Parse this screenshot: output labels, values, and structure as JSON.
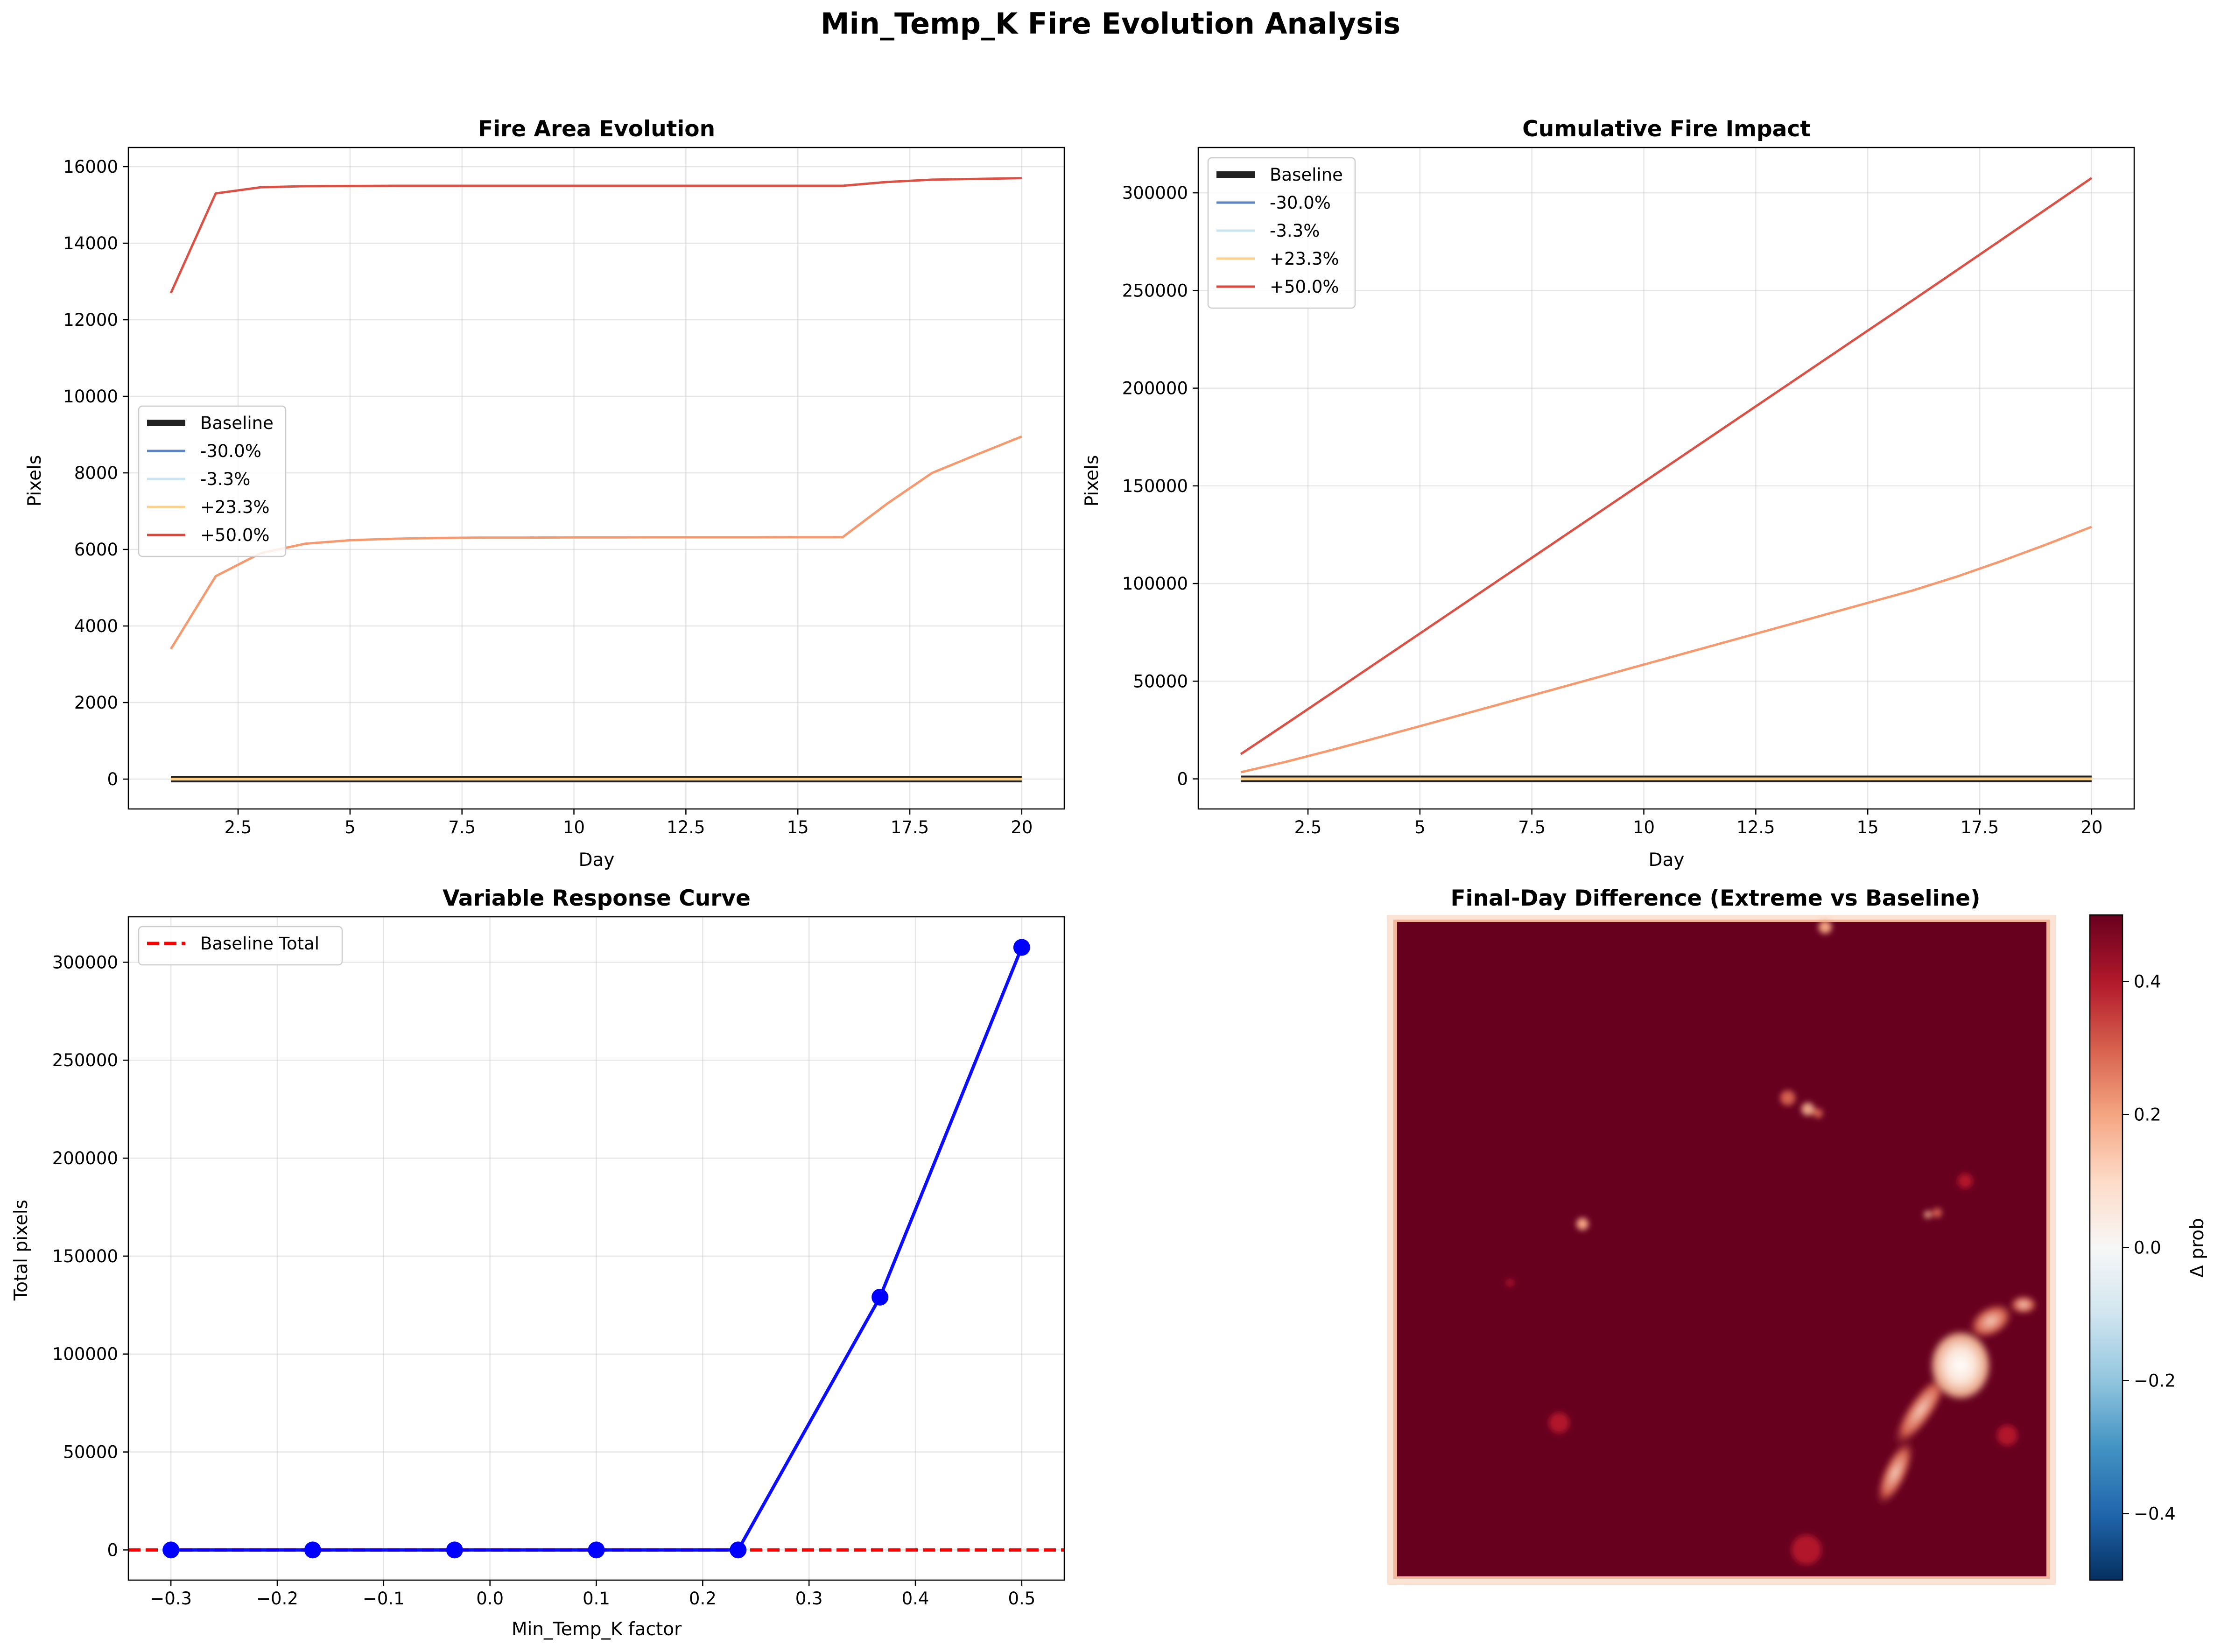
{
  "figure": {
    "title": "Min_Temp_K Fire Evolution Analysis"
  },
  "colors": {
    "baseline": "#222222",
    "m30": "#5b84c4",
    "m3_3": "#c9e4f2",
    "p23_3": "#fdd08a",
    "p50": "#d9483b",
    "p36_7": "#f59467",
    "response": "#0000ff",
    "baseline_total": "#ff0000",
    "heat_high": "#67001f",
    "heat_low": "#053061"
  },
  "chart_data": [
    {
      "id": "area",
      "type": "line",
      "title": "Fire Area Evolution",
      "xlabel": "Day",
      "ylabel": "Pixels",
      "xlim": [
        0.05,
        20.95
      ],
      "ylim": [
        -780,
        16500
      ],
      "xticks": [
        2.5,
        5.0,
        7.5,
        10.0,
        12.5,
        15.0,
        17.5,
        20.0
      ],
      "yticks": [
        0,
        2000,
        4000,
        6000,
        8000,
        10000,
        12000,
        14000,
        16000
      ],
      "grid": true,
      "legend": {
        "position": "center-left",
        "entries": [
          {
            "label": "Baseline",
            "color": "baseline",
            "width": "thick"
          },
          {
            "label": "-30.0%",
            "color": "m30",
            "width": "thin"
          },
          {
            "label": "-3.3%",
            "color": "m3_3",
            "width": "thin"
          },
          {
            "label": "+23.3%",
            "color": "p23_3",
            "width": "thin"
          },
          {
            "label": "+50.0%",
            "color": "p50",
            "width": "thin"
          }
        ]
      },
      "x": [
        1,
        2,
        3,
        4,
        5,
        6,
        7,
        8,
        9,
        10,
        11,
        12,
        13,
        14,
        15,
        16,
        17,
        18,
        19,
        20
      ],
      "series": [
        {
          "name": "Baseline",
          "color": "baseline",
          "width": "thick",
          "values": [
            0,
            0,
            0,
            0,
            0,
            0,
            0,
            0,
            0,
            0,
            0,
            0,
            0,
            0,
            0,
            0,
            0,
            0,
            0,
            0
          ]
        },
        {
          "name": "-30.0%",
          "color": "m30",
          "width": "thin",
          "values": [
            0,
            0,
            0,
            0,
            0,
            0,
            0,
            0,
            0,
            0,
            0,
            0,
            0,
            0,
            0,
            0,
            0,
            0,
            0,
            0
          ]
        },
        {
          "name": "-3.3%",
          "color": "m3_3",
          "width": "thin",
          "values": [
            0,
            0,
            0,
            0,
            0,
            0,
            0,
            0,
            0,
            0,
            0,
            0,
            0,
            0,
            0,
            0,
            0,
            0,
            0,
            0
          ]
        },
        {
          "name": "+23.3%",
          "color": "p23_3",
          "width": "thin",
          "values": [
            0,
            0,
            0,
            0,
            0,
            0,
            0,
            0,
            0,
            0,
            0,
            0,
            0,
            0,
            0,
            0,
            0,
            0,
            0,
            0
          ]
        },
        {
          "color": "p36_7",
          "width": "thin",
          "values": [
            3400,
            5300,
            5900,
            6150,
            6240,
            6280,
            6300,
            6310,
            6310,
            6315,
            6315,
            6318,
            6318,
            6318,
            6320,
            6320,
            7200,
            8000,
            8480,
            8950
          ]
        },
        {
          "name": "+50.0%",
          "color": "p50",
          "width": "thin",
          "values": [
            12700,
            15300,
            15460,
            15490,
            15495,
            15500,
            15500,
            15500,
            15500,
            15500,
            15500,
            15500,
            15500,
            15500,
            15500,
            15500,
            15600,
            15660,
            15680,
            15700
          ]
        }
      ]
    },
    {
      "id": "cumulative",
      "type": "line",
      "title": "Cumulative Fire Impact",
      "xlabel": "Day",
      "ylabel": "Pixels",
      "xlim": [
        0.05,
        20.95
      ],
      "ylim": [
        -15400,
        323200
      ],
      "xticks": [
        2.5,
        5.0,
        7.5,
        10.0,
        12.5,
        15.0,
        17.5,
        20.0
      ],
      "yticks": [
        0,
        50000,
        100000,
        150000,
        200000,
        250000,
        300000
      ],
      "grid": true,
      "legend": {
        "position": "upper-left",
        "entries": [
          {
            "label": "Baseline",
            "color": "baseline",
            "width": "thick"
          },
          {
            "label": "-30.0%",
            "color": "m30",
            "width": "thin"
          },
          {
            "label": "-3.3%",
            "color": "m3_3",
            "width": "thin"
          },
          {
            "label": "+23.3%",
            "color": "p23_3",
            "width": "thin"
          },
          {
            "label": "+50.0%",
            "color": "p50",
            "width": "thin"
          }
        ]
      },
      "x": [
        1,
        2,
        3,
        4,
        5,
        6,
        7,
        8,
        9,
        10,
        11,
        12,
        13,
        14,
        15,
        16,
        17,
        18,
        19,
        20
      ],
      "series": [
        {
          "name": "Baseline",
          "color": "baseline",
          "width": "thick",
          "values": [
            0,
            0,
            0,
            0,
            0,
            0,
            0,
            0,
            0,
            0,
            0,
            0,
            0,
            0,
            0,
            0,
            0,
            0,
            0,
            0
          ]
        },
        {
          "name": "-30.0%",
          "color": "m30",
          "width": "thin",
          "values": [
            0,
            0,
            0,
            0,
            0,
            0,
            0,
            0,
            0,
            0,
            0,
            0,
            0,
            0,
            0,
            0,
            0,
            0,
            0,
            0
          ]
        },
        {
          "name": "-3.3%",
          "color": "m3_3",
          "width": "thin",
          "values": [
            0,
            0,
            0,
            0,
            0,
            0,
            0,
            0,
            0,
            0,
            0,
            0,
            0,
            0,
            0,
            0,
            0,
            0,
            0,
            0
          ]
        },
        {
          "name": "+23.3%",
          "color": "p23_3",
          "width": "thin",
          "values": [
            0,
            0,
            0,
            0,
            0,
            0,
            0,
            0,
            0,
            0,
            0,
            0,
            0,
            0,
            0,
            0,
            0,
            0,
            0,
            0
          ]
        },
        {
          "color": "p36_7",
          "width": "thin",
          "values": [
            3400,
            8700,
            14600,
            20750,
            26990,
            33270,
            39570,
            45880,
            52190,
            58505,
            64820,
            71138,
            77456,
            83774,
            90094,
            96414,
            103614,
            111614,
            120094,
            129044
          ]
        },
        {
          "name": "+50.0%",
          "color": "p50",
          "width": "thin",
          "values": [
            12700,
            28000,
            43460,
            58950,
            74445,
            89945,
            105445,
            120945,
            136445,
            151945,
            167445,
            182945,
            198445,
            213945,
            229445,
            244945,
            260545,
            276205,
            291885,
            307585
          ]
        }
      ]
    },
    {
      "id": "response",
      "type": "line",
      "title": "Variable Response Curve",
      "xlabel": "Min_Temp_K factor",
      "ylabel": "Total pixels",
      "xlim": [
        -0.34,
        0.54
      ],
      "ylim": [
        -15400,
        323200
      ],
      "xticks": [
        -0.3,
        -0.2,
        -0.1,
        0.0,
        0.1,
        0.2,
        0.3,
        0.4,
        0.5
      ],
      "xtick_labels": [
        "−0.3",
        "−0.2",
        "−0.1",
        "0.0",
        "0.1",
        "0.2",
        "0.3",
        "0.4",
        "0.5"
      ],
      "yticks": [
        0,
        50000,
        100000,
        150000,
        200000,
        250000,
        300000
      ],
      "grid": true,
      "legend": {
        "position": "upper-left",
        "entries": [
          {
            "label": "Baseline Total",
            "color": "baseline_total",
            "style": "dashed"
          }
        ]
      },
      "x": [
        -0.3,
        -0.1667,
        -0.0333,
        0.1,
        0.2333,
        0.3667,
        0.5
      ],
      "series": [
        {
          "color": "response",
          "marker": "circle",
          "values": [
            0,
            0,
            0,
            0,
            0,
            129044,
            307585
          ]
        }
      ],
      "hlines": [
        {
          "name": "Baseline Total",
          "value": 0,
          "color": "baseline_total",
          "style": "dashed"
        }
      ]
    },
    {
      "id": "difference",
      "type": "heatmap",
      "title": "Final-Day Difference (Extreme vs Baseline)",
      "colorbar": {
        "label": "Δ prob",
        "range": [
          -0.5,
          0.5
        ],
        "ticks": [
          -0.4,
          -0.2,
          0.0,
          0.2,
          0.4
        ],
        "tick_labels": [
          "−0.4",
          "−0.2",
          "0.0",
          "0.2",
          "0.4"
        ],
        "colormap": "RdBu_r"
      },
      "description_values": {
        "dominant_value": 0.5,
        "light_region_value": 0.0
      }
    }
  ]
}
